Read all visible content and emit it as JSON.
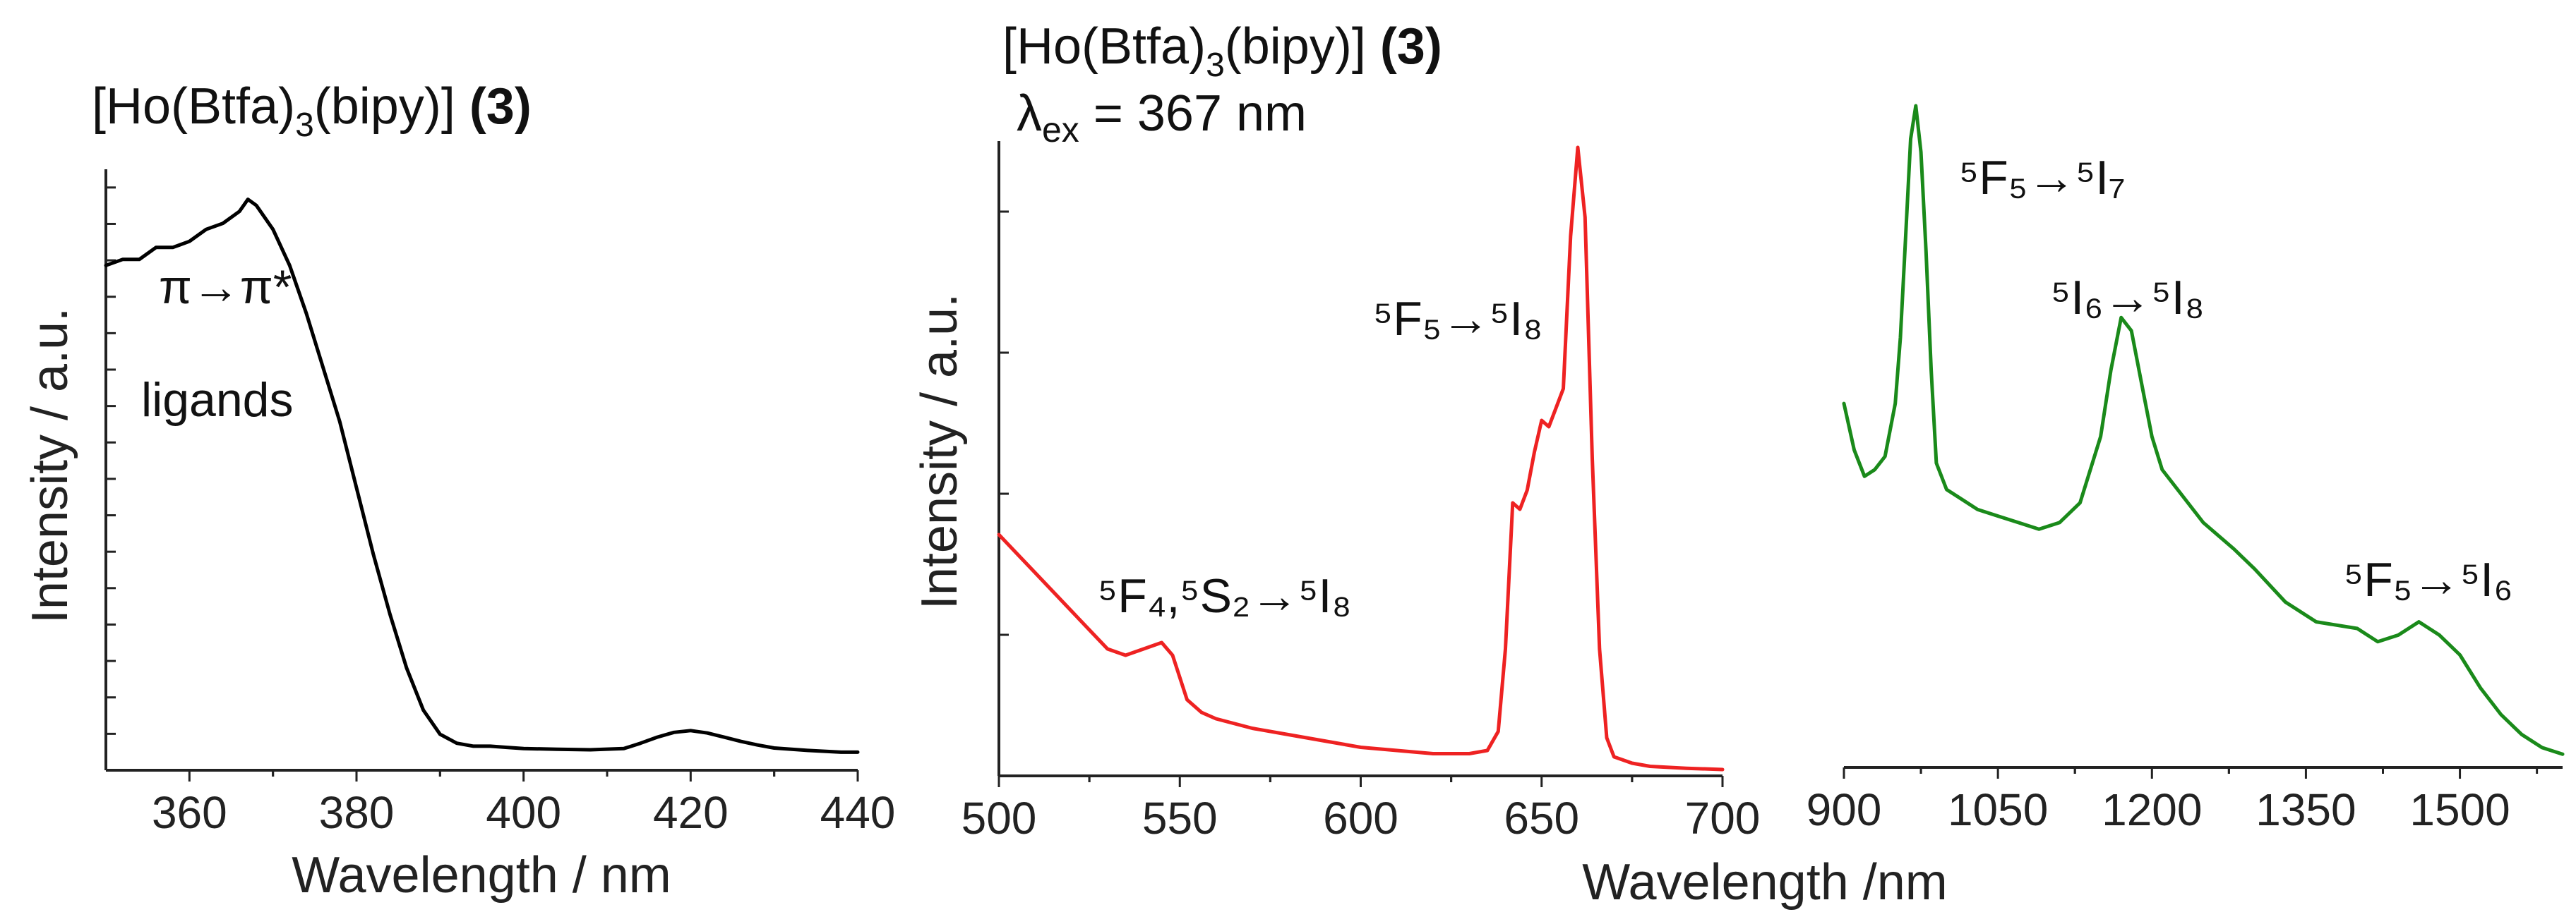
{
  "chart_data": [
    {
      "type": "line",
      "panel": "excitation",
      "title": "[Ho(Btfa)3(bipy)] (3)",
      "title_parts": {
        "prefix": "[Ho(Btfa)",
        "sub": "3",
        "mid": "(bipy)] ",
        "bold": "(3)"
      },
      "xlabel": "Wavelength / nm",
      "ylabel": "Intensity / a.u.",
      "xlim": [
        350,
        440
      ],
      "ylim": [
        0,
        1
      ],
      "xticks": [
        "360",
        "380",
        "400",
        "420",
        "440"
      ],
      "color": "#000000",
      "annotation": {
        "line1": "π→π*",
        "line2": "ligands"
      },
      "series": [
        {
          "name": "excitation",
          "x": [
            350,
            352,
            354,
            356,
            358,
            360,
            362,
            364,
            366,
            367,
            368,
            370,
            372,
            374,
            376,
            378,
            380,
            382,
            384,
            386,
            388,
            390,
            392,
            394,
            396,
            398,
            400,
            404,
            408,
            412,
            414,
            416,
            418,
            420,
            422,
            424,
            426,
            428,
            430,
            434,
            438,
            440
          ],
          "values": [
            0.84,
            0.85,
            0.85,
            0.87,
            0.87,
            0.88,
            0.9,
            0.91,
            0.93,
            0.95,
            0.94,
            0.9,
            0.84,
            0.76,
            0.67,
            0.58,
            0.47,
            0.36,
            0.26,
            0.17,
            0.1,
            0.06,
            0.045,
            0.04,
            0.04,
            0.038,
            0.036,
            0.035,
            0.034,
            0.036,
            0.045,
            0.055,
            0.063,
            0.066,
            0.062,
            0.055,
            0.048,
            0.042,
            0.037,
            0.033,
            0.03,
            0.03
          ]
        }
      ]
    },
    {
      "type": "line",
      "panel": "emission-visible",
      "title": "[Ho(Btfa)3(bipy)] (3)",
      "title_parts": {
        "prefix": "[Ho(Btfa)",
        "sub": "3",
        "mid": "(bipy)] ",
        "bold": "(3)"
      },
      "excitation_label": {
        "symbol": "λ",
        "sub": "ex",
        "rest": " = 367 nm"
      },
      "ylabel": "Intensity / a.u.",
      "xlim": [
        500,
        700
      ],
      "ylim": [
        0,
        1
      ],
      "xticks": [
        "500",
        "550",
        "600",
        "650",
        "700"
      ],
      "color": "#ee2222",
      "annotations": [
        {
          "id": "f4s2",
          "text": "⁵F₄,⁵S₂→⁵I₈"
        },
        {
          "id": "f5i8",
          "text": "⁵F₅→⁵I₈"
        }
      ],
      "series": [
        {
          "name": "emission-visible",
          "x": [
            500,
            505,
            510,
            515,
            520,
            525,
            530,
            535,
            540,
            545,
            548,
            552,
            556,
            560,
            570,
            580,
            590,
            600,
            610,
            620,
            630,
            635,
            638,
            640,
            642,
            644,
            646,
            648,
            650,
            652,
            654,
            656,
            658,
            660,
            662,
            664,
            666,
            668,
            670,
            675,
            680,
            690,
            700
          ],
          "values": [
            0.38,
            0.35,
            0.32,
            0.29,
            0.26,
            0.23,
            0.2,
            0.19,
            0.2,
            0.21,
            0.19,
            0.12,
            0.1,
            0.09,
            0.075,
            0.065,
            0.055,
            0.045,
            0.04,
            0.035,
            0.035,
            0.04,
            0.07,
            0.2,
            0.43,
            0.42,
            0.45,
            0.51,
            0.56,
            0.55,
            0.58,
            0.61,
            0.85,
            0.99,
            0.88,
            0.5,
            0.2,
            0.06,
            0.03,
            0.02,
            0.015,
            0.012,
            0.01
          ]
        }
      ]
    },
    {
      "type": "line",
      "panel": "emission-nir",
      "xlim": [
        900,
        1600
      ],
      "ylim": [
        0,
        1
      ],
      "xticks": [
        "900",
        "1050",
        "1200",
        "1350",
        "1500"
      ],
      "color": "#1a8a1a",
      "annotations": [
        {
          "id": "f5i7",
          "text": "⁵F₅→⁵I₇"
        },
        {
          "id": "i6i8",
          "text": "⁵I₆→⁵I₈"
        },
        {
          "id": "f5i6",
          "text": "⁵F₅→⁵I₆"
        }
      ],
      "series": [
        {
          "name": "emission-nir",
          "x": [
            900,
            910,
            920,
            930,
            940,
            950,
            955,
            960,
            965,
            970,
            975,
            980,
            985,
            990,
            1000,
            1010,
            1030,
            1050,
            1070,
            1090,
            1110,
            1130,
            1150,
            1160,
            1170,
            1180,
            1190,
            1200,
            1210,
            1230,
            1250,
            1280,
            1300,
            1330,
            1360,
            1400,
            1420,
            1440,
            1460,
            1480,
            1500,
            1520,
            1540,
            1560,
            1580,
            1600
          ],
          "values": [
            0.55,
            0.48,
            0.44,
            0.45,
            0.47,
            0.55,
            0.65,
            0.8,
            0.95,
            1.0,
            0.93,
            0.78,
            0.6,
            0.46,
            0.42,
            0.41,
            0.39,
            0.38,
            0.37,
            0.36,
            0.37,
            0.4,
            0.5,
            0.6,
            0.68,
            0.66,
            0.58,
            0.5,
            0.45,
            0.41,
            0.37,
            0.33,
            0.3,
            0.25,
            0.22,
            0.21,
            0.19,
            0.2,
            0.22,
            0.2,
            0.17,
            0.12,
            0.08,
            0.05,
            0.03,
            0.02
          ]
        }
      ]
    }
  ],
  "shared_xlabel": "Wavelength /nm"
}
